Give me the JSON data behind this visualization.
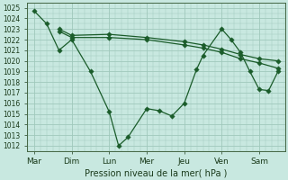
{
  "background_color": "#c8e8e0",
  "grid_color": "#a0c8bc",
  "line_color": "#1a5c2a",
  "xlabel": "Pression niveau de la mer( hPa )",
  "xlabels": [
    "Mar",
    "Dim",
    "Lun",
    "Mer",
    "Jeu",
    "Ven",
    "Sam"
  ],
  "xtick_pos": [
    0,
    1,
    2,
    3,
    4,
    5,
    6
  ],
  "ylim": [
    1011.5,
    1025.5
  ],
  "yticks": [
    1012,
    1013,
    1014,
    1015,
    1016,
    1017,
    1018,
    1019,
    1020,
    1021,
    1022,
    1023,
    1024,
    1025
  ],
  "line1_x": [
    0.0,
    0.33,
    0.66,
    1.0,
    1.5,
    2.0,
    2.25,
    2.5,
    3.0,
    3.33,
    3.67,
    4.0,
    4.33,
    4.5,
    5.0,
    5.25,
    5.5,
    5.75,
    6.0,
    6.25,
    6.5
  ],
  "line1_y": [
    1024.7,
    1023.5,
    1021.0,
    1022.0,
    1019.0,
    1015.2,
    1012.0,
    1012.8,
    1015.5,
    1015.3,
    1014.8,
    1016.0,
    1019.2,
    1020.5,
    1023.0,
    1022.0,
    1020.8,
    1019.0,
    1017.3,
    1017.2,
    1019.0
  ],
  "line2_x": [
    0.66,
    1.0,
    2.0,
    3.0,
    4.0,
    4.5,
    5.0,
    5.5,
    6.0,
    6.5
  ],
  "line2_y": [
    1022.8,
    1022.2,
    1022.2,
    1022.0,
    1021.5,
    1021.2,
    1020.8,
    1020.2,
    1019.8,
    1019.3
  ],
  "line3_x": [
    0.66,
    1.0,
    2.0,
    3.0,
    4.0,
    4.5,
    5.0,
    5.5,
    6.0,
    6.5
  ],
  "line3_y": [
    1023.0,
    1022.4,
    1022.5,
    1022.2,
    1021.8,
    1021.5,
    1021.1,
    1020.6,
    1020.2,
    1020.0
  ],
  "figsize": [
    3.2,
    2.0
  ],
  "dpi": 100
}
